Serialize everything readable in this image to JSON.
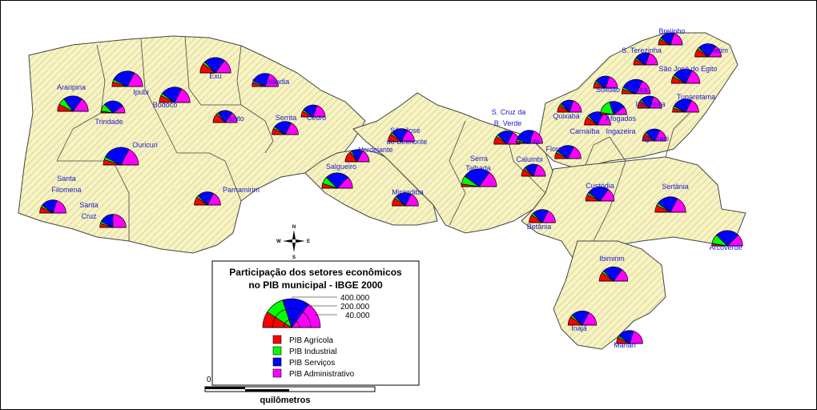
{
  "legend": {
    "title_line1": "Participação dos setores econômicos",
    "title_line2": "no PIB municipal - IBGE 2000",
    "size_values": [
      "400.000",
      "200.000",
      "40.000"
    ],
    "categories": [
      {
        "label": "PIB Agrícola",
        "color": "#ff0000"
      },
      {
        "label": "PIB Industrial",
        "color": "#00ff00"
      },
      {
        "label": "PIB Serviços",
        "color": "#0000ff"
      },
      {
        "label": "PIB Administrativo",
        "color": "#ff00ff"
      }
    ]
  },
  "scale": {
    "zero": "0",
    "label": "quilômetros"
  },
  "compass": {
    "n": "N",
    "s": "S",
    "e": "E",
    "w": "W"
  },
  "colors": {
    "fill": "#f7f3c2",
    "hatch": "#d9d29a",
    "border": "#444444",
    "label": "#1a1ad0"
  },
  "municipalities": [
    {
      "name": "Araripina",
      "shares": [
        0.15,
        0.15,
        0.4,
        0.3
      ],
      "size": 0.8
    },
    {
      "name": "Ipubi",
      "shares": [
        0.1,
        0.05,
        0.5,
        0.35
      ],
      "size": 0.8
    },
    {
      "name": "Exu",
      "shares": [
        0.2,
        0.05,
        0.45,
        0.3
      ],
      "size": 0.8
    },
    {
      "name": "Moreilândia",
      "shares": [
        0.1,
        0.05,
        0.45,
        0.4
      ],
      "size": 0.6
    },
    {
      "name": "Trindade",
      "shares": [
        0.05,
        0.2,
        0.55,
        0.2
      ],
      "size": 0.5
    },
    {
      "name": "Bodocó",
      "shares": [
        0.15,
        0.05,
        0.45,
        0.35
      ],
      "size": 0.8
    },
    {
      "name": "Granito",
      "shares": [
        0.25,
        0.05,
        0.4,
        0.3
      ],
      "size": 0.5
    },
    {
      "name": "Cedro",
      "shares": [
        0.15,
        0.05,
        0.4,
        0.4
      ],
      "size": 0.5
    },
    {
      "name": "Serrita",
      "shares": [
        0.15,
        0.05,
        0.45,
        0.35
      ],
      "size": 0.6
    },
    {
      "name": "Ouricuri",
      "shares": [
        0.1,
        0.05,
        0.5,
        0.35
      ],
      "size": 1.0
    },
    {
      "name": "Verdejante",
      "shares": [
        0.3,
        0.05,
        0.3,
        0.35
      ],
      "size": 0.5
    },
    {
      "name": "São José",
      "shares": [
        0.2,
        0.05,
        0.4,
        0.35
      ],
      "size": 0.6
    },
    {
      "name": "do Belmonte",
      "shares": [],
      "size": 0
    },
    {
      "name": "Salgueiro",
      "shares": [
        0.1,
        0.15,
        0.5,
        0.25
      ],
      "size": 0.8
    },
    {
      "name": "Mirandiba",
      "shares": [
        0.2,
        0.05,
        0.4,
        0.35
      ],
      "size": 0.6
    },
    {
      "name": "Santa",
      "shares": [],
      "size": 0
    },
    {
      "name": "Filomena",
      "shares": [
        0.15,
        0.05,
        0.4,
        0.4
      ],
      "size": 0.6
    },
    {
      "name": "Santa",
      "shares": [],
      "size": 0
    },
    {
      "name": "Cruz",
      "shares": [
        0.1,
        0.05,
        0.35,
        0.5
      ],
      "size": 0.6
    },
    {
      "name": "Parnamirim",
      "shares": [
        0.2,
        0.05,
        0.4,
        0.35
      ],
      "size": 0.6
    },
    {
      "name": "S. Cruz da",
      "shares": [],
      "size": 0
    },
    {
      "name": "B. Verde",
      "shares": [
        0.2,
        0.05,
        0.4,
        0.35
      ],
      "size": 0.6
    },
    {
      "name": "Triunfo",
      "shares": [
        0.05,
        0.05,
        0.5,
        0.4
      ],
      "size": 0.6
    },
    {
      "name": "Serra",
      "shares": [],
      "size": 0
    },
    {
      "name": "Talhada",
      "shares": [
        0.05,
        0.15,
        0.5,
        0.3
      ],
      "size": 1.0
    },
    {
      "name": "Calumbi",
      "shares": [
        0.2,
        0.05,
        0.35,
        0.4
      ],
      "size": 0.5
    },
    {
      "name": "Flores",
      "shares": [
        0.15,
        0.05,
        0.45,
        0.35
      ],
      "size": 0.6
    },
    {
      "name": "Quixabá",
      "shares": [
        0.2,
        0.05,
        0.35,
        0.4
      ],
      "size": 0.5
    },
    {
      "name": "Carnaíba",
      "shares": [
        0.2,
        0.05,
        0.4,
        0.35
      ],
      "size": 0.6
    },
    {
      "name": "Afogados",
      "shares": [
        0.05,
        0.35,
        0.4,
        0.2
      ],
      "size": 0.6
    },
    {
      "name": "Ingazeira",
      "shares": [],
      "size": 0
    },
    {
      "name": "Solidão",
      "shares": [
        0.15,
        0.05,
        0.4,
        0.4
      ],
      "size": 0.5
    },
    {
      "name": "Tabira",
      "shares": [
        0.1,
        0.05,
        0.5,
        0.35
      ],
      "size": 0.7
    },
    {
      "name": "Ingazeira",
      "shares": [
        0.2,
        0.05,
        0.35,
        0.4
      ],
      "size": 0.5
    },
    {
      "name": "Iguaraci",
      "shares": [
        0.2,
        0.05,
        0.4,
        0.35
      ],
      "size": 0.5
    },
    {
      "name": "Tuparetama",
      "shares": [
        0.1,
        0.05,
        0.5,
        0.35
      ],
      "size": 0.6
    },
    {
      "name": "Brejinho",
      "shares": [
        0.15,
        0.05,
        0.4,
        0.4
      ],
      "size": 0.5
    },
    {
      "name": "Itapetim",
      "shares": [
        0.2,
        0.05,
        0.45,
        0.3
      ],
      "size": 0.6
    },
    {
      "name": "S. Terezinha",
      "shares": [
        0.15,
        0.05,
        0.4,
        0.4
      ],
      "size": 0.5
    },
    {
      "name": "São José do Egito",
      "shares": [
        0.15,
        0.05,
        0.45,
        0.35
      ],
      "size": 0.7
    },
    {
      "name": "Custódia",
      "shares": [
        0.15,
        0.05,
        0.5,
        0.3
      ],
      "size": 0.7
    },
    {
      "name": "Betânia",
      "shares": [
        0.2,
        0.05,
        0.4,
        0.35
      ],
      "size": 0.6
    },
    {
      "name": "Sertânia",
      "shares": [
        0.15,
        0.05,
        0.45,
        0.35
      ],
      "size": 0.8
    },
    {
      "name": "Arcoverde",
      "shares": [
        0.05,
        0.2,
        0.5,
        0.25
      ],
      "size": 0.8
    },
    {
      "name": "Ibimirim",
      "shares": [
        0.2,
        0.05,
        0.45,
        0.3
      ],
      "size": 0.7
    },
    {
      "name": "Inajá",
      "shares": [
        0.2,
        0.05,
        0.4,
        0.35
      ],
      "size": 0.7
    },
    {
      "name": "Manari",
      "shares": [
        0.15,
        0.05,
        0.4,
        0.4
      ],
      "size": 0.6
    }
  ]
}
